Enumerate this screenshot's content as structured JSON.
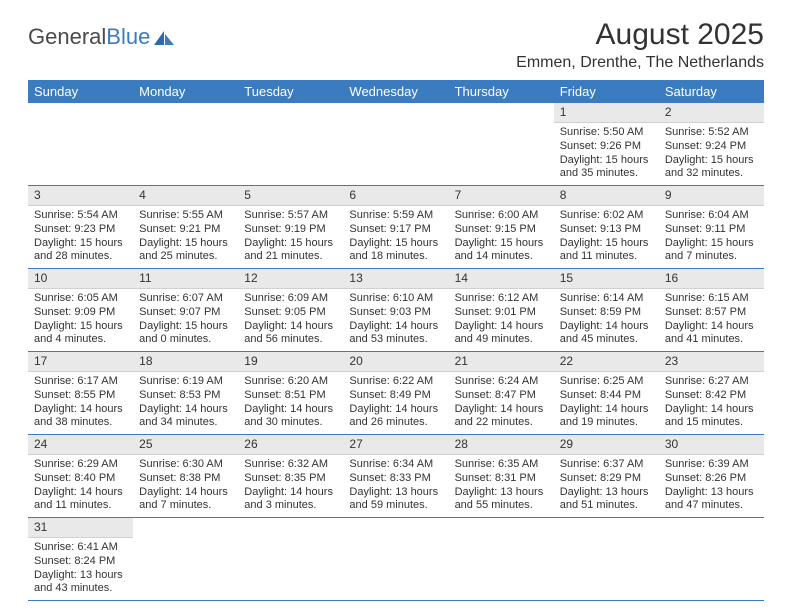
{
  "logo": {
    "text_general": "General",
    "text_blue": "Blue"
  },
  "title": "August 2025",
  "location": "Emmen, Drenthe, The Netherlands",
  "day_headers": [
    "Sunday",
    "Monday",
    "Tuesday",
    "Wednesday",
    "Thursday",
    "Friday",
    "Saturday"
  ],
  "colors": {
    "header_bg": "#3b7bbf",
    "header_text": "#ffffff",
    "daynum_bg": "#e9e9e9",
    "row_border": "#3b7bbf",
    "text": "#333333"
  },
  "weeks": [
    [
      null,
      null,
      null,
      null,
      null,
      {
        "n": "1",
        "sunrise": "5:50 AM",
        "sunset": "9:26 PM",
        "daylight": "15 hours and 35 minutes."
      },
      {
        "n": "2",
        "sunrise": "5:52 AM",
        "sunset": "9:24 PM",
        "daylight": "15 hours and 32 minutes."
      }
    ],
    [
      {
        "n": "3",
        "sunrise": "5:54 AM",
        "sunset": "9:23 PM",
        "daylight": "15 hours and 28 minutes."
      },
      {
        "n": "4",
        "sunrise": "5:55 AM",
        "sunset": "9:21 PM",
        "daylight": "15 hours and 25 minutes."
      },
      {
        "n": "5",
        "sunrise": "5:57 AM",
        "sunset": "9:19 PM",
        "daylight": "15 hours and 21 minutes."
      },
      {
        "n": "6",
        "sunrise": "5:59 AM",
        "sunset": "9:17 PM",
        "daylight": "15 hours and 18 minutes."
      },
      {
        "n": "7",
        "sunrise": "6:00 AM",
        "sunset": "9:15 PM",
        "daylight": "15 hours and 14 minutes."
      },
      {
        "n": "8",
        "sunrise": "6:02 AM",
        "sunset": "9:13 PM",
        "daylight": "15 hours and 11 minutes."
      },
      {
        "n": "9",
        "sunrise": "6:04 AM",
        "sunset": "9:11 PM",
        "daylight": "15 hours and 7 minutes."
      }
    ],
    [
      {
        "n": "10",
        "sunrise": "6:05 AM",
        "sunset": "9:09 PM",
        "daylight": "15 hours and 4 minutes."
      },
      {
        "n": "11",
        "sunrise": "6:07 AM",
        "sunset": "9:07 PM",
        "daylight": "15 hours and 0 minutes."
      },
      {
        "n": "12",
        "sunrise": "6:09 AM",
        "sunset": "9:05 PM",
        "daylight": "14 hours and 56 minutes."
      },
      {
        "n": "13",
        "sunrise": "6:10 AM",
        "sunset": "9:03 PM",
        "daylight": "14 hours and 53 minutes."
      },
      {
        "n": "14",
        "sunrise": "6:12 AM",
        "sunset": "9:01 PM",
        "daylight": "14 hours and 49 minutes."
      },
      {
        "n": "15",
        "sunrise": "6:14 AM",
        "sunset": "8:59 PM",
        "daylight": "14 hours and 45 minutes."
      },
      {
        "n": "16",
        "sunrise": "6:15 AM",
        "sunset": "8:57 PM",
        "daylight": "14 hours and 41 minutes."
      }
    ],
    [
      {
        "n": "17",
        "sunrise": "6:17 AM",
        "sunset": "8:55 PM",
        "daylight": "14 hours and 38 minutes."
      },
      {
        "n": "18",
        "sunrise": "6:19 AM",
        "sunset": "8:53 PM",
        "daylight": "14 hours and 34 minutes."
      },
      {
        "n": "19",
        "sunrise": "6:20 AM",
        "sunset": "8:51 PM",
        "daylight": "14 hours and 30 minutes."
      },
      {
        "n": "20",
        "sunrise": "6:22 AM",
        "sunset": "8:49 PM",
        "daylight": "14 hours and 26 minutes."
      },
      {
        "n": "21",
        "sunrise": "6:24 AM",
        "sunset": "8:47 PM",
        "daylight": "14 hours and 22 minutes."
      },
      {
        "n": "22",
        "sunrise": "6:25 AM",
        "sunset": "8:44 PM",
        "daylight": "14 hours and 19 minutes."
      },
      {
        "n": "23",
        "sunrise": "6:27 AM",
        "sunset": "8:42 PM",
        "daylight": "14 hours and 15 minutes."
      }
    ],
    [
      {
        "n": "24",
        "sunrise": "6:29 AM",
        "sunset": "8:40 PM",
        "daylight": "14 hours and 11 minutes."
      },
      {
        "n": "25",
        "sunrise": "6:30 AM",
        "sunset": "8:38 PM",
        "daylight": "14 hours and 7 minutes."
      },
      {
        "n": "26",
        "sunrise": "6:32 AM",
        "sunset": "8:35 PM",
        "daylight": "14 hours and 3 minutes."
      },
      {
        "n": "27",
        "sunrise": "6:34 AM",
        "sunset": "8:33 PM",
        "daylight": "13 hours and 59 minutes."
      },
      {
        "n": "28",
        "sunrise": "6:35 AM",
        "sunset": "8:31 PM",
        "daylight": "13 hours and 55 minutes."
      },
      {
        "n": "29",
        "sunrise": "6:37 AM",
        "sunset": "8:29 PM",
        "daylight": "13 hours and 51 minutes."
      },
      {
        "n": "30",
        "sunrise": "6:39 AM",
        "sunset": "8:26 PM",
        "daylight": "13 hours and 47 minutes."
      }
    ],
    [
      {
        "n": "31",
        "sunrise": "6:41 AM",
        "sunset": "8:24 PM",
        "daylight": "13 hours and 43 minutes."
      },
      null,
      null,
      null,
      null,
      null,
      null
    ]
  ],
  "labels": {
    "sunrise": "Sunrise:",
    "sunset": "Sunset:",
    "daylight": "Daylight:"
  }
}
